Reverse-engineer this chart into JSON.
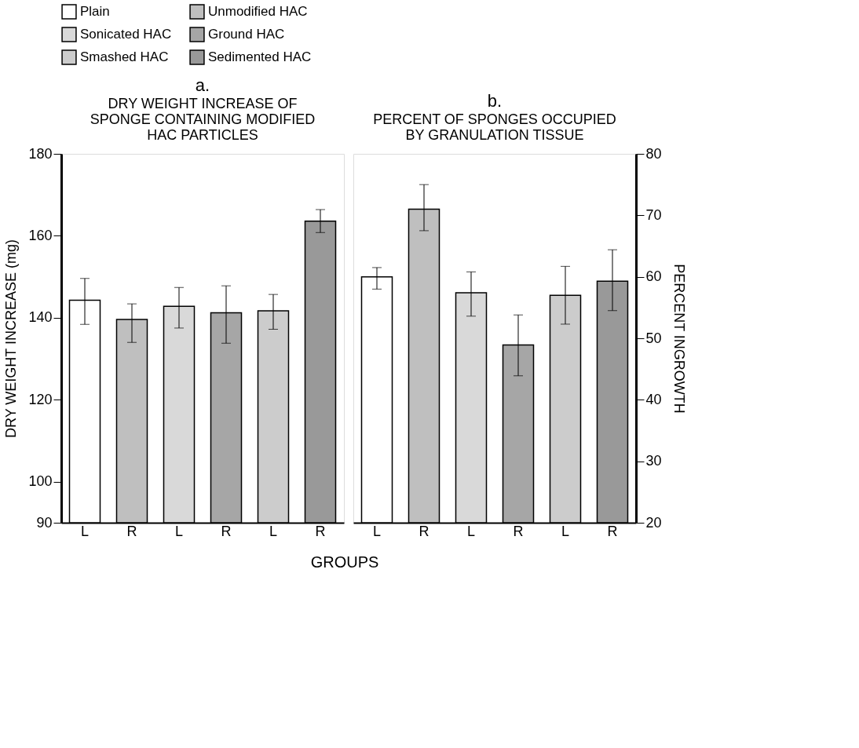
{
  "chart_data": [
    {
      "type": "bar",
      "title": "a.",
      "subtitle": "DRY WEIGHT INCREASE OF SPONGE CONTAINING MODIFIED HAC PARTICLES",
      "ylabel": "DRY WEIGHT INCREASE (mg)",
      "xlabel": "GROUPS",
      "categories": [
        "L",
        "R",
        "L",
        "R",
        "L",
        "R"
      ],
      "series": [
        {
          "name": "Plain",
          "color": "#ffffff",
          "values": [
            144.3,
            null,
            null,
            null,
            null,
            null
          ],
          "errors": [
            [
              138.4,
              149.6
            ],
            null,
            null,
            null,
            null,
            null
          ]
        },
        {
          "name": "Unmodified HAC",
          "color": "#bfbfbf",
          "values": [
            null,
            139.6,
            null,
            null,
            null,
            null
          ],
          "errors": [
            null,
            [
              134,
              143.4
            ],
            null,
            null,
            null,
            null
          ]
        },
        {
          "name": "Sonicated HAC",
          "color": "#d9d9d9",
          "values": [
            null,
            null,
            142.8,
            null,
            null,
            null
          ],
          "errors": [
            null,
            null,
            [
              137.5,
              147.4
            ],
            null,
            null,
            null
          ]
        },
        {
          "name": "Ground HAC",
          "color": "#a6a6a6",
          "values": [
            null,
            null,
            null,
            141.2,
            null,
            null
          ],
          "errors": [
            null,
            null,
            null,
            [
              133.8,
              147.8
            ],
            null,
            null
          ]
        },
        {
          "name": "Smashed HAC",
          "color": "#cccccc",
          "values": [
            null,
            null,
            null,
            null,
            141.7,
            null
          ],
          "errors": [
            null,
            null,
            null,
            null,
            [
              137.2,
              145.7
            ],
            null
          ]
        },
        {
          "name": "Sedimented HAC",
          "color": "#999999",
          "values": [
            null,
            null,
            null,
            null,
            null,
            163.6
          ],
          "errors": [
            null,
            null,
            null,
            null,
            null,
            [
              160.8,
              166.4
            ]
          ]
        }
      ],
      "ylim": [
        90,
        180
      ],
      "yticks": [
        90,
        100,
        120,
        140,
        160,
        180
      ],
      "grid": false,
      "legend": "top"
    },
    {
      "type": "bar",
      "title": "b.",
      "subtitle": "PERCENT OF SPONGES OCCUPIED BY GRANULATION TISSUE",
      "y2label": "PERCENT INGROWTH",
      "categories": [
        "L",
        "R",
        "L",
        "R",
        "L",
        "R"
      ],
      "series": [
        {
          "color": "#ffffff",
          "axis": "y2",
          "values": [
            60,
            null,
            null,
            null,
            null,
            null
          ],
          "errors": [
            [
              58,
              61.5
            ],
            null,
            null,
            null,
            null,
            null
          ]
        },
        {
          "color": "#bfbfbf",
          "axis": "y2",
          "values": [
            null,
            71,
            null,
            null,
            null,
            null
          ],
          "errors": [
            null,
            [
              67.5,
              75
            ],
            null,
            null,
            null,
            null
          ]
        },
        {
          "color": "#d9d9d9",
          "axis": "y2",
          "values": [
            null,
            null,
            57.4,
            null,
            null,
            null
          ],
          "errors": [
            null,
            null,
            [
              53.6,
              60.8
            ],
            null,
            null,
            null
          ]
        },
        {
          "color": "#a6a6a6",
          "axis": "y2",
          "values": [
            null,
            null,
            null,
            48.9,
            null,
            null
          ],
          "errors": [
            null,
            null,
            null,
            [
              43.9,
              53.8
            ],
            null,
            null
          ]
        },
        {
          "color": "#cccccc",
          "axis": "y2",
          "values": [
            null,
            null,
            null,
            null,
            57,
            null
          ],
          "errors": [
            null,
            null,
            null,
            null,
            [
              52.3,
              61.7
            ],
            null
          ]
        },
        {
          "color": "#999999",
          "axis": "y2",
          "values": [
            null,
            null,
            null,
            null,
            null,
            59.3
          ],
          "errors": [
            null,
            null,
            null,
            null,
            null,
            [
              54.5,
              64.4
            ]
          ]
        }
      ],
      "y2lim": [
        20,
        80
      ],
      "y2ticks": [
        20,
        30,
        40,
        50,
        60,
        70,
        80
      ],
      "grid": false,
      "legend": false
    }
  ]
}
